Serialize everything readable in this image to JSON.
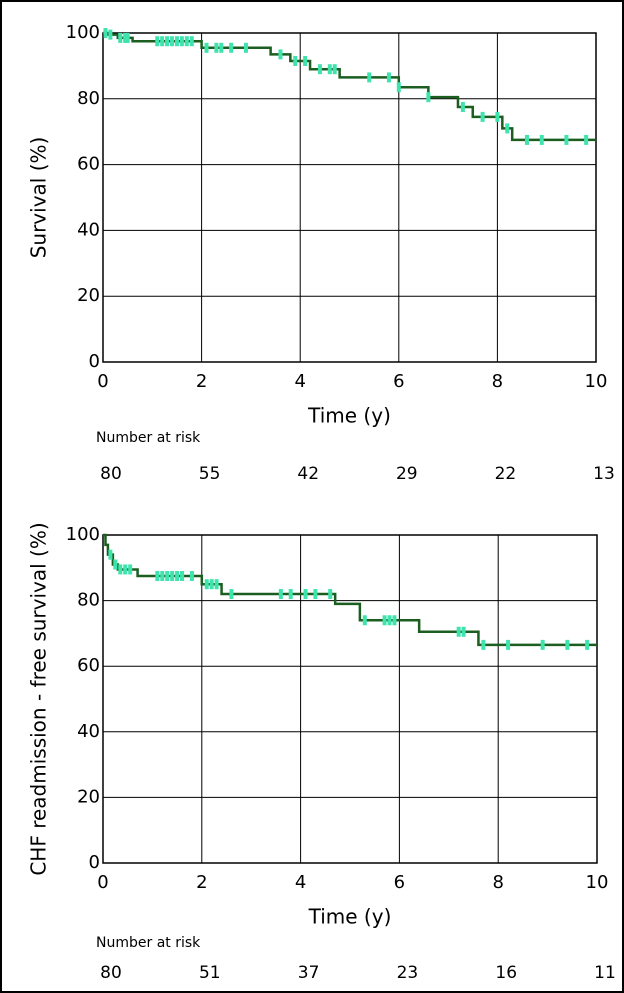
{
  "chart_data": [
    {
      "type": "line",
      "step": "post",
      "color": "#1b5e20",
      "censor_color": "#3fe3ad",
      "x": [
        0,
        0.1,
        0.3,
        0.6,
        2.0,
        3.4,
        3.8,
        4.2,
        4.8,
        6.0,
        6.6,
        7.2,
        7.5,
        8.1,
        8.3,
        10
      ],
      "values": [
        100,
        99.5,
        98.5,
        97.5,
        95.5,
        93.5,
        91.5,
        89,
        86.5,
        83.5,
        80.5,
        77.5,
        74.5,
        71,
        67.5,
        67.5
      ],
      "censor_x": [
        0.05,
        0.15,
        0.35,
        0.45,
        0.5,
        1.1,
        1.2,
        1.3,
        1.4,
        1.5,
        1.6,
        1.7,
        1.8,
        2.1,
        2.3,
        2.4,
        2.6,
        2.9,
        3.6,
        3.9,
        4.1,
        4.4,
        4.6,
        4.7,
        5.4,
        5.8,
        6.0,
        6.6,
        7.3,
        7.7,
        8.0,
        8.2,
        8.6,
        8.9,
        9.4,
        9.8
      ],
      "censor_values": [
        100,
        99.5,
        98.5,
        98.5,
        98.5,
        97.5,
        97.5,
        97.5,
        97.5,
        97.5,
        97.5,
        97.5,
        97.5,
        95.5,
        95.5,
        95.5,
        95.5,
        95.5,
        93.5,
        91.5,
        91.5,
        89,
        89,
        89,
        86.5,
        86.5,
        83.5,
        80.5,
        77.5,
        74.5,
        74.5,
        71,
        67.5,
        67.5,
        67.5,
        67.5
      ],
      "xlabel": "Time (y)",
      "ylabel": "Survival (%)",
      "xlim": [
        0,
        10
      ],
      "ylim": [
        0,
        100
      ],
      "xticks": [
        0,
        2,
        4,
        6,
        8,
        10
      ],
      "yticks": [
        0,
        20,
        40,
        60,
        80,
        100
      ],
      "grid": true,
      "risk_title": "Number at risk",
      "risk_counts": [
        80,
        55,
        42,
        29,
        22,
        13
      ]
    },
    {
      "type": "line",
      "step": "post",
      "color": "#1b5e20",
      "censor_color": "#3fe3ad",
      "x": [
        0,
        0.05,
        0.1,
        0.2,
        0.3,
        0.7,
        2.0,
        2.4,
        4.7,
        5.2,
        6.4,
        7.6,
        10
      ],
      "values": [
        100,
        97,
        94,
        91,
        89.5,
        87.5,
        85,
        82,
        79,
        74,
        70.5,
        66.5,
        66.5
      ],
      "censor_x": [
        0.15,
        0.25,
        0.35,
        0.45,
        0.55,
        1.1,
        1.2,
        1.3,
        1.4,
        1.5,
        1.6,
        1.8,
        2.1,
        2.2,
        2.3,
        2.6,
        3.6,
        3.8,
        4.1,
        4.3,
        4.6,
        5.3,
        5.7,
        5.8,
        5.9,
        7.2,
        7.3,
        7.7,
        8.2,
        8.9,
        9.4,
        9.8
      ],
      "censor_values": [
        94,
        91,
        89.5,
        89.5,
        89.5,
        87.5,
        87.5,
        87.5,
        87.5,
        87.5,
        87.5,
        87.5,
        85,
        85,
        85,
        82,
        82,
        82,
        82,
        82,
        82,
        74,
        74,
        74,
        74,
        70.5,
        70.5,
        66.5,
        66.5,
        66.5,
        66.5,
        66.5
      ],
      "xlabel": "Time (y)",
      "ylabel": "CHF readmission - free survival (%)",
      "xlim": [
        0,
        10
      ],
      "ylim": [
        0,
        100
      ],
      "xticks": [
        0,
        2,
        4,
        6,
        8,
        10
      ],
      "yticks": [
        0,
        20,
        40,
        60,
        80,
        100
      ],
      "grid": true,
      "risk_title": "Number at risk",
      "risk_counts": [
        80,
        51,
        37,
        23,
        16,
        11
      ]
    }
  ]
}
